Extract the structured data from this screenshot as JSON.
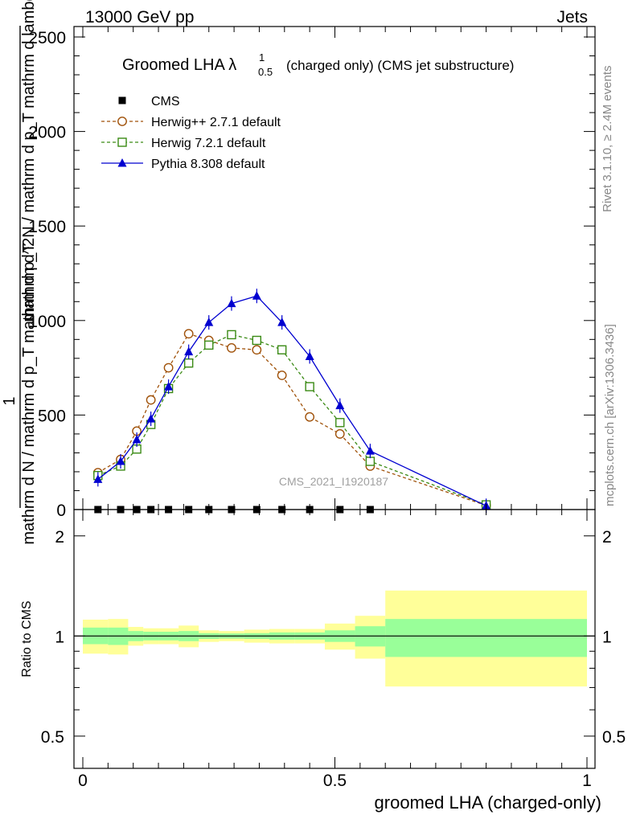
{
  "header": {
    "left": "13000 GeV pp",
    "right": "Jets"
  },
  "side_labels": {
    "rivet": "Rivet 3.1.10, ≥ 2.4M events",
    "mcplots": "mcplots.cern.ch [arXiv:1306.3436]"
  },
  "main_plot": {
    "title_main": "Groomed LHA λ",
    "title_sup": "1",
    "title_sub": "0.5",
    "title_rest": "(charged only) (CMS jet substructure)",
    "ylabel_one": "1",
    "ylabel_denom": "mathrm d N / mathrm d p_T mathrm d p_T",
    "ylabel_numer": "mathrm d^2N / mathrm d p_T mathrm d lambda",
    "analysis_id": "CMS_2021_I1920187",
    "yticks": [
      "0",
      "500",
      "1000",
      "1500",
      "2000",
      "2500"
    ]
  },
  "ratio_plot": {
    "ylabel": "Ratio to CMS",
    "yticks": [
      "0.5",
      "1",
      "2"
    ],
    "xlabel": "groomed LHA (charged-only)",
    "xticks": [
      "0",
      "0.5",
      "1"
    ]
  },
  "chart_data": [
    {
      "type": "line",
      "title": "Groomed LHA λ^1_0.5 (charged only) (CMS jet substructure)",
      "xlabel": "groomed LHA (charged-only)",
      "ylabel": "1 / (mathrm d N / mathrm d p_T mathrm d p_T) · mathrm d^2N / mathrm d p_T mathrm d lambda",
      "xlim": [
        0,
        1
      ],
      "ylim": [
        0,
        2550
      ],
      "legend_position": "top-left",
      "series": [
        {
          "name": "CMS",
          "color": "#000000",
          "marker": "filled-square",
          "x": [
            0.03,
            0.075,
            0.107,
            0.135,
            0.17,
            0.21,
            0.25,
            0.295,
            0.345,
            0.395,
            0.45,
            0.51,
            0.57
          ],
          "values": [
            0,
            0,
            0,
            0,
            0,
            0,
            0,
            0,
            0,
            0,
            0,
            0,
            0
          ]
        },
        {
          "name": "Herwig++ 2.7.1 default",
          "color": "#a0520a",
          "marker": "open-circle",
          "x": [
            0.03,
            0.075,
            0.107,
            0.135,
            0.17,
            0.21,
            0.25,
            0.295,
            0.345,
            0.395,
            0.45,
            0.51,
            0.57,
            0.8
          ],
          "values": [
            195,
            265,
            415,
            580,
            750,
            930,
            895,
            855,
            845,
            710,
            490,
            400,
            230,
            22
          ]
        },
        {
          "name": "Herwig 7.2.1 default",
          "color": "#3a8a14",
          "marker": "open-square",
          "x": [
            0.03,
            0.075,
            0.107,
            0.135,
            0.17,
            0.21,
            0.25,
            0.295,
            0.345,
            0.395,
            0.45,
            0.51,
            0.57,
            0.8
          ],
          "values": [
            180,
            230,
            320,
            450,
            640,
            775,
            870,
            925,
            895,
            845,
            650,
            460,
            255,
            25
          ]
        },
        {
          "name": "Pythia 8.308 default",
          "color": "#0000d0",
          "marker": "filled-triangle",
          "x": [
            0.03,
            0.075,
            0.107,
            0.135,
            0.17,
            0.21,
            0.25,
            0.295,
            0.345,
            0.395,
            0.45,
            0.51,
            0.57,
            0.8
          ],
          "values": [
            160,
            255,
            370,
            480,
            650,
            835,
            990,
            1090,
            1130,
            990,
            810,
            550,
            310,
            20
          ]
        }
      ]
    },
    {
      "type": "area",
      "title": "",
      "xlabel": "groomed LHA (charged-only)",
      "ylabel": "Ratio to CMS",
      "xlim": [
        0,
        1
      ],
      "ylim": [
        0.4,
        2.4
      ],
      "yscale": "log",
      "reference_line": 1,
      "bins": [
        {
          "x_low": 0.0,
          "x_high": 0.05,
          "inner": [
            0.945,
            1.06
          ],
          "outer": [
            0.885,
            1.12
          ]
        },
        {
          "x_low": 0.05,
          "x_high": 0.09,
          "inner": [
            0.94,
            1.06
          ],
          "outer": [
            0.88,
            1.125
          ]
        },
        {
          "x_low": 0.09,
          "x_high": 0.12,
          "inner": [
            0.965,
            1.035
          ],
          "outer": [
            0.935,
            1.065
          ]
        },
        {
          "x_low": 0.12,
          "x_high": 0.15,
          "inner": [
            0.97,
            1.03
          ],
          "outer": [
            0.945,
            1.055
          ]
        },
        {
          "x_low": 0.15,
          "x_high": 0.19,
          "inner": [
            0.97,
            1.03
          ],
          "outer": [
            0.945,
            1.055
          ]
        },
        {
          "x_low": 0.19,
          "x_high": 0.23,
          "inner": [
            0.965,
            1.035
          ],
          "outer": [
            0.925,
            1.075
          ]
        },
        {
          "x_low": 0.23,
          "x_high": 0.27,
          "inner": [
            0.98,
            1.02
          ],
          "outer": [
            0.96,
            1.04
          ]
        },
        {
          "x_low": 0.27,
          "x_high": 0.32,
          "inner": [
            0.982,
            1.018
          ],
          "outer": [
            0.965,
            1.035
          ]
        },
        {
          "x_low": 0.32,
          "x_high": 0.37,
          "inner": [
            0.98,
            1.02
          ],
          "outer": [
            0.955,
            1.045
          ]
        },
        {
          "x_low": 0.37,
          "x_high": 0.42,
          "inner": [
            0.975,
            1.025
          ],
          "outer": [
            0.95,
            1.05
          ]
        },
        {
          "x_low": 0.42,
          "x_high": 0.48,
          "inner": [
            0.975,
            1.025
          ],
          "outer": [
            0.95,
            1.05
          ]
        },
        {
          "x_low": 0.48,
          "x_high": 0.54,
          "inner": [
            0.96,
            1.04
          ],
          "outer": [
            0.91,
            1.09
          ]
        },
        {
          "x_low": 0.54,
          "x_high": 0.6,
          "inner": [
            0.93,
            1.07
          ],
          "outer": [
            0.855,
            1.15
          ]
        },
        {
          "x_low": 0.6,
          "x_high": 1.0,
          "inner": [
            0.865,
            1.125
          ],
          "outer": [
            0.705,
            1.37
          ]
        }
      ]
    }
  ]
}
